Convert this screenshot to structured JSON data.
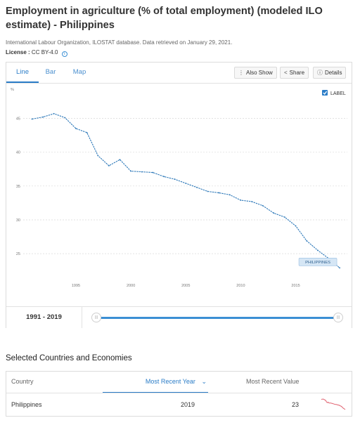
{
  "header": {
    "title": "Employment in agriculture (% of total employment) (modeled ILO estimate) - Philippines",
    "source": "International Labour Organization, ILOSTAT database. Data retrieved on January 29, 2021.",
    "license_label": "License :",
    "license_value": "CC BY-4.0",
    "license_info_glyph": "i"
  },
  "tabs": [
    {
      "label": "Line",
      "active": true
    },
    {
      "label": "Bar",
      "active": false
    },
    {
      "label": "Map",
      "active": false
    }
  ],
  "toolbar": {
    "also_show": "Also Show",
    "also_show_icon": "ellipsis-vertical-icon",
    "share": "Share",
    "share_icon": "share-icon",
    "details": "Details",
    "details_icon": "info-icon"
  },
  "legend": {
    "checkbox_label": "LABEL",
    "checked": true
  },
  "colors": {
    "line": "#2e79b9",
    "accent": "#3b8fd4",
    "label_bg": "#d5e6f5",
    "sparkline": "#e0606e"
  },
  "chart_data": {
    "type": "line",
    "title": "",
    "xlabel": "",
    "ylabel": "%",
    "ylim": [
      22,
      49
    ],
    "xlim": [
      1990.2,
      2019.7
    ],
    "x_ticks": [
      1995,
      2000,
      2005,
      2010,
      2015
    ],
    "y_ticks": [
      25,
      30,
      35,
      40,
      45
    ],
    "grid": true,
    "series": [
      {
        "name": "PHILIPPINES",
        "x": [
          1991,
          1992,
          1993,
          1994,
          1995,
          1996,
          1997,
          1998,
          1999,
          2000,
          2001,
          2002,
          2003,
          2004,
          2005,
          2006,
          2007,
          2008,
          2009,
          2010,
          2011,
          2012,
          2013,
          2014,
          2015,
          2016,
          2017,
          2018,
          2019
        ],
        "values": [
          44.9,
          45.2,
          45.7,
          45.1,
          43.5,
          42.9,
          39.5,
          38.0,
          38.9,
          37.2,
          37.1,
          37.0,
          36.4,
          36.0,
          35.4,
          34.8,
          34.2,
          34.0,
          33.7,
          32.9,
          32.7,
          32.1,
          31.0,
          30.4,
          29.1,
          26.9,
          25.5,
          24.3,
          22.9
        ]
      }
    ]
  },
  "range": {
    "label": "1991 - 2019",
    "handle_glyph": "|||"
  },
  "section": {
    "title": "Selected Countries and Economies"
  },
  "table": {
    "headers": {
      "country": "Country",
      "year": "Most Recent Year",
      "value": "Most Recent Value"
    },
    "sort_glyph": "⌄",
    "rows": [
      {
        "country": "Philippines",
        "year": "2019",
        "value": "23"
      }
    ]
  }
}
